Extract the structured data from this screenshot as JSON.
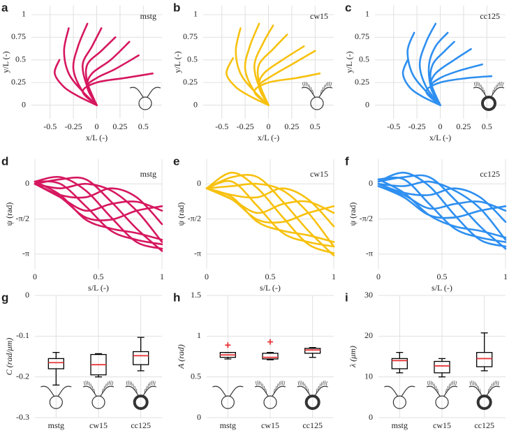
{
  "chart_data": [
    {
      "type": "line",
      "panel_label": "a",
      "label": "mstg",
      "color": "#d6175f",
      "xlabel": "x/L (-)",
      "ylabel": "y/L (-)",
      "xlim": [
        -0.7,
        0.7
      ],
      "ylim": [
        -0.15,
        1.1
      ],
      "xticks": [
        -0.5,
        -0.25,
        0,
        0.25,
        0.5
      ],
      "yticks": [
        0,
        0.25,
        0.5,
        0.75,
        1
      ],
      "grid": true,
      "series": [
        {
          "x": [
            0,
            -0.15,
            -0.3,
            -0.35,
            -0.3
          ],
          "values": [
            0,
            0.15,
            0.35,
            0.6,
            0.85
          ]
        },
        {
          "x": [
            0,
            -0.15,
            -0.25,
            -0.2,
            -0.1
          ],
          "values": [
            0,
            0.15,
            0.4,
            0.65,
            0.9
          ]
        },
        {
          "x": [
            0,
            -0.1,
            -0.15,
            -0.05,
            0.05
          ],
          "values": [
            0,
            0.2,
            0.45,
            0.65,
            0.85
          ]
        },
        {
          "x": [
            0,
            -0.1,
            -0.1,
            0.05,
            0.2
          ],
          "values": [
            0,
            0.25,
            0.45,
            0.6,
            0.75
          ]
        },
        {
          "x": [
            0,
            -0.1,
            -0.05,
            0.15,
            0.35
          ],
          "values": [
            0,
            0.2,
            0.35,
            0.5,
            0.7
          ]
        },
        {
          "x": [
            0,
            -0.1,
            0,
            0.2,
            0.45
          ],
          "values": [
            0,
            0.2,
            0.3,
            0.4,
            0.55
          ]
        },
        {
          "x": [
            0,
            -0.15,
            0,
            0.3,
            0.6
          ],
          "values": [
            0,
            0.15,
            0.25,
            0.3,
            0.35
          ]
        },
        {
          "x": [
            0,
            -0.2,
            -0.35,
            -0.45,
            -0.4
          ],
          "values": [
            0,
            0.1,
            0.2,
            0.35,
            0.5
          ]
        }
      ]
    },
    {
      "type": "line",
      "panel_label": "b",
      "label": "cw15",
      "color": "#f7c10f",
      "xlabel": "x/L (-)",
      "ylabel": "y/L (-)",
      "xlim": [
        -0.7,
        0.7
      ],
      "ylim": [
        -0.15,
        1.1
      ],
      "xticks": [
        -0.5,
        -0.25,
        0,
        0.25,
        0.5
      ],
      "yticks": [
        0,
        0.25,
        0.5,
        0.75,
        1
      ],
      "grid": true,
      "series": [
        {
          "x": [
            0,
            -0.15,
            -0.3,
            -0.35,
            -0.3
          ],
          "values": [
            0,
            0.15,
            0.35,
            0.6,
            0.85
          ]
        },
        {
          "x": [
            0,
            -0.15,
            -0.25,
            -0.2,
            -0.1
          ],
          "values": [
            0,
            0.15,
            0.4,
            0.65,
            0.9
          ]
        },
        {
          "x": [
            0,
            -0.1,
            -0.15,
            -0.05,
            0.05
          ],
          "values": [
            0,
            0.2,
            0.45,
            0.7,
            0.88
          ]
        },
        {
          "x": [
            0,
            -0.1,
            -0.1,
            0.05,
            0.2
          ],
          "values": [
            0,
            0.25,
            0.45,
            0.62,
            0.78
          ]
        },
        {
          "x": [
            0,
            -0.1,
            -0.05,
            0.15,
            0.38
          ],
          "values": [
            0,
            0.2,
            0.35,
            0.5,
            0.65
          ]
        },
        {
          "x": [
            0,
            -0.1,
            0,
            0.25,
            0.5
          ],
          "values": [
            0,
            0.2,
            0.3,
            0.45,
            0.6
          ]
        },
        {
          "x": [
            0,
            -0.15,
            0,
            0.3,
            0.55
          ],
          "values": [
            0,
            0.15,
            0.25,
            0.3,
            0.35
          ]
        },
        {
          "x": [
            0,
            -0.2,
            -0.35,
            -0.45,
            -0.38
          ],
          "values": [
            0,
            0.1,
            0.2,
            0.35,
            0.52
          ]
        }
      ]
    },
    {
      "type": "line",
      "panel_label": "c",
      "label": "cc125",
      "color": "#2e8ff0",
      "xlabel": "x/L (-)",
      "ylabel": "y/L (-)",
      "xlim": [
        -0.7,
        0.7
      ],
      "ylim": [
        -0.15,
        1.1
      ],
      "xticks": [
        -0.5,
        -0.25,
        0,
        0.25,
        0.5
      ],
      "yticks": [
        0,
        0.25,
        0.5,
        0.75,
        1
      ],
      "grid": true,
      "series": [
        {
          "x": [
            0,
            -0.15,
            -0.3,
            -0.35,
            -0.28
          ],
          "values": [
            0,
            0.15,
            0.35,
            0.6,
            0.8
          ]
        },
        {
          "x": [
            0,
            -0.15,
            -0.22,
            -0.15,
            -0.05
          ],
          "values": [
            0,
            0.2,
            0.45,
            0.7,
            0.9
          ]
        },
        {
          "x": [
            0,
            -0.1,
            -0.12,
            -0.05,
            0.08
          ],
          "values": [
            0,
            0.2,
            0.45,
            0.65,
            0.8
          ]
        },
        {
          "x": [
            0,
            -0.1,
            -0.08,
            0.05,
            0.15
          ],
          "values": [
            0,
            0.25,
            0.45,
            0.6,
            0.7
          ]
        },
        {
          "x": [
            0,
            -0.1,
            -0.05,
            0.15,
            0.33
          ],
          "values": [
            0,
            0.2,
            0.35,
            0.5,
            0.62
          ]
        },
        {
          "x": [
            0,
            -0.1,
            0,
            0.2,
            0.45
          ],
          "values": [
            0,
            0.2,
            0.3,
            0.38,
            0.45
          ]
        },
        {
          "x": [
            0,
            -0.15,
            0,
            0.3,
            0.55
          ],
          "values": [
            0,
            0.15,
            0.25,
            0.3,
            0.32
          ]
        },
        {
          "x": [
            0,
            -0.2,
            -0.33,
            -0.4,
            -0.35
          ],
          "values": [
            0,
            0.1,
            0.2,
            0.35,
            0.5
          ]
        }
      ]
    },
    {
      "type": "line",
      "panel_label": "d",
      "label": "mstg",
      "color": "#d6175f",
      "xlabel": "s/L (-)",
      "ylabel": "ψ (rad)",
      "xlim": [
        0,
        1
      ],
      "ylim": [
        -3.8,
        1.1
      ],
      "xticks": [
        0,
        0.5,
        1
      ],
      "yticks": [
        {
          "value": -3.1416,
          "label": "-π"
        },
        {
          "value": -1.5708,
          "label": "-π/2"
        },
        0
      ],
      "grid": true,
      "x": [
        0,
        0.2,
        0.4,
        0.6,
        0.8,
        1
      ],
      "series": [
        {
          "values": [
            0.1,
            -0.5,
            -1.6,
            -2.0,
            -2.2,
            -2.5
          ]
        },
        {
          "values": [
            0.1,
            0.0,
            -1.0,
            -2.1,
            -2.5,
            -2.7
          ]
        },
        {
          "values": [
            0.1,
            0.3,
            -0.3,
            -1.5,
            -2.6,
            -2.9
          ]
        },
        {
          "values": [
            0.0,
            0.2,
            0.2,
            -0.8,
            -2.0,
            -3.0
          ]
        },
        {
          "values": [
            0.0,
            -0.2,
            0.0,
            -0.3,
            -1.2,
            -2.6
          ]
        },
        {
          "values": [
            0.0,
            -0.5,
            -0.6,
            -0.2,
            -0.6,
            -1.8
          ]
        },
        {
          "values": [
            0.0,
            -0.6,
            -1.2,
            -0.9,
            -0.8,
            -1.2
          ]
        },
        {
          "values": [
            0.0,
            -0.6,
            -1.5,
            -1.6,
            -1.2,
            -1.0
          ]
        }
      ]
    },
    {
      "type": "line",
      "panel_label": "e",
      "label": "cw15",
      "color": "#f7c10f",
      "xlabel": "s/L (-)",
      "ylabel": "ψ (rad)",
      "xlim": [
        0,
        1
      ],
      "ylim": [
        -3.8,
        1.1
      ],
      "xticks": [
        0,
        0.5,
        1
      ],
      "yticks": [
        {
          "value": -3.1416,
          "label": "-π"
        },
        {
          "value": -1.5708,
          "label": "-π/2"
        },
        0
      ],
      "grid": true,
      "x": [
        0,
        0.2,
        0.4,
        0.6,
        0.8,
        1
      ],
      "series": [
        {
          "values": [
            -0.2,
            -0.6,
            -1.7,
            -2.1,
            -2.3,
            -2.6
          ]
        },
        {
          "values": [
            -0.2,
            0.1,
            -1.0,
            -2.2,
            -2.6,
            -2.8
          ]
        },
        {
          "values": [
            -0.2,
            0.5,
            -0.2,
            -1.5,
            -2.7,
            -3.1
          ]
        },
        {
          "values": [
            -0.2,
            0.3,
            0.3,
            -0.8,
            -2.1,
            -3.2
          ]
        },
        {
          "values": [
            -0.2,
            -0.1,
            0.0,
            -0.3,
            -1.3,
            -2.8
          ]
        },
        {
          "values": [
            -0.2,
            -0.5,
            -0.6,
            -0.2,
            -0.7,
            -1.9
          ]
        },
        {
          "values": [
            -0.2,
            -0.7,
            -1.3,
            -0.9,
            -0.8,
            -1.3
          ]
        },
        {
          "values": [
            -0.2,
            -0.7,
            -1.6,
            -1.7,
            -1.3,
            -1.0
          ]
        }
      ]
    },
    {
      "type": "line",
      "panel_label": "f",
      "label": "cc125",
      "color": "#2e8ff0",
      "xlabel": "s/L (-)",
      "ylabel": "ψ (rad)",
      "xlim": [
        0,
        1
      ],
      "ylim": [
        -3.8,
        1.1
      ],
      "xticks": [
        0,
        0.5,
        1
      ],
      "yticks": [
        {
          "value": -3.1416,
          "label": "-π"
        },
        {
          "value": -1.5708,
          "label": "-π/2"
        },
        0
      ],
      "grid": true,
      "x": [
        0,
        0.2,
        0.4,
        0.6,
        0.8,
        1
      ],
      "series": [
        {
          "values": [
            0.2,
            -0.4,
            -1.4,
            -1.9,
            -2.1,
            -2.4
          ]
        },
        {
          "values": [
            0.2,
            0.2,
            -0.9,
            -2.0,
            -2.4,
            -2.6
          ]
        },
        {
          "values": [
            0.1,
            0.5,
            -0.1,
            -1.4,
            -2.5,
            -2.8
          ]
        },
        {
          "values": [
            0.1,
            0.3,
            0.3,
            -0.7,
            -1.9,
            -2.9
          ]
        },
        {
          "values": [
            0.0,
            -0.1,
            0.1,
            -0.3,
            -1.1,
            -2.5
          ]
        },
        {
          "values": [
            0.0,
            -0.4,
            -0.5,
            -0.2,
            -0.6,
            -1.7
          ]
        },
        {
          "values": [
            -0.1,
            -0.5,
            -1.1,
            -0.9,
            -0.8,
            -1.2
          ]
        },
        {
          "values": [
            -0.1,
            -0.6,
            -1.4,
            -1.5,
            -1.2,
            -1.0
          ]
        }
      ]
    },
    {
      "type": "box",
      "panel_label": "g",
      "ylabel": "C (rad/μm)",
      "categories": [
        "mstg",
        "cw15",
        "cc125"
      ],
      "ylim": [
        -0.3,
        0
      ],
      "yticks": [
        -0.3,
        -0.2,
        -0.1,
        0
      ],
      "grid": true,
      "box_color": "#000000",
      "median_color": "#e8383b",
      "boxes": [
        {
          "min": -0.22,
          "q1": -0.18,
          "median": -0.165,
          "q3": -0.155,
          "max": -0.14,
          "outliers": []
        },
        {
          "min": -0.2,
          "q1": -0.195,
          "median": -0.17,
          "q3": -0.145,
          "max": -0.143,
          "outliers": []
        },
        {
          "min": -0.185,
          "q1": -0.17,
          "median": -0.148,
          "q3": -0.138,
          "max": -0.103,
          "outliers": []
        }
      ]
    },
    {
      "type": "box",
      "panel_label": "h",
      "ylabel": "A (rad)",
      "categories": [
        "mstg",
        "cw15",
        "cc125"
      ],
      "ylim": [
        0,
        1.5
      ],
      "yticks": [
        0,
        0.5,
        1,
        1.5
      ],
      "grid": true,
      "box_color": "#000000",
      "median_color": "#e8383b",
      "boxes": [
        {
          "min": 0.72,
          "q1": 0.74,
          "median": 0.77,
          "q3": 0.8,
          "max": 0.8,
          "outliers": [
            0.89
          ]
        },
        {
          "min": 0.71,
          "q1": 0.72,
          "median": 0.74,
          "q3": 0.79,
          "max": 0.8,
          "outliers": [
            0.93
          ]
        },
        {
          "min": 0.74,
          "q1": 0.79,
          "median": 0.83,
          "q3": 0.85,
          "max": 0.86,
          "outliers": []
        }
      ]
    },
    {
      "type": "box",
      "panel_label": "i",
      "ylabel": "λ (μm)",
      "categories": [
        "mstg",
        "cw15",
        "cc125"
      ],
      "ylim": [
        0,
        30
      ],
      "yticks": [
        0,
        10,
        20,
        30
      ],
      "grid": true,
      "box_color": "#000000",
      "median_color": "#e8383b",
      "boxes": [
        {
          "min": 11,
          "q1": 12,
          "median": 14,
          "q3": 14.5,
          "max": 16,
          "outliers": []
        },
        {
          "min": 10,
          "q1": 11,
          "median": 12.7,
          "q3": 13.8,
          "max": 14.5,
          "outliers": []
        },
        {
          "min": 11.5,
          "q1": 12.5,
          "median": 14.5,
          "q3": 16,
          "max": 20.8,
          "outliers": []
        }
      ]
    }
  ]
}
